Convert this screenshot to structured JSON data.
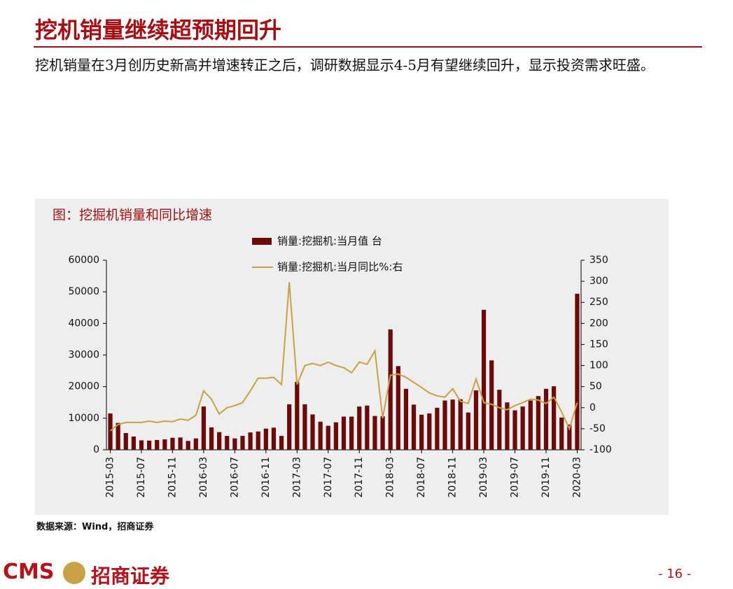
{
  "header": {
    "title": "挖机销量继续超预期回升",
    "body": "挖机销量在3月创历史新高并增速转正之后，调研数据显示4-5月有望继续回升，显示投资需求旺盛。"
  },
  "chart_data": {
    "type": "bar-line",
    "title": "图：挖掘机销量和同比增速",
    "categories": [
      "2015-03",
      null,
      null,
      null,
      "2015-07",
      null,
      null,
      null,
      "2015-11",
      null,
      null,
      null,
      "2016-03",
      null,
      null,
      null,
      "2016-07",
      null,
      null,
      null,
      "2016-11",
      null,
      null,
      null,
      "2017-03",
      null,
      null,
      null,
      "2017-07",
      null,
      null,
      null,
      "2017-11",
      null,
      null,
      null,
      "2018-03",
      null,
      null,
      null,
      "2018-07",
      null,
      null,
      null,
      "2018-11",
      null,
      null,
      null,
      "2019-03",
      null,
      null,
      null,
      "2019-07",
      null,
      null,
      null,
      "2019-11",
      null,
      null,
      null,
      "2020-03"
    ],
    "series": [
      {
        "name": "销量:挖掘机:当月值 台",
        "type": "bar",
        "color": "#6b0a0a",
        "values": [
          11500,
          8500,
          5300,
          4200,
          3000,
          2900,
          3100,
          3300,
          3800,
          3900,
          2800,
          3600,
          13700,
          7100,
          5600,
          4400,
          3600,
          4400,
          5500,
          5800,
          6700,
          7000,
          4400,
          14400,
          21500,
          14400,
          11200,
          8900,
          7600,
          8700,
          10500,
          10500,
          13700,
          14000,
          10700,
          10600,
          38100,
          26500,
          19300,
          14300,
          11100,
          11500,
          13300,
          15600,
          15900,
          16000,
          11800,
          18800,
          44300,
          28300,
          19000,
          15000,
          12500,
          13700,
          15600,
          17000,
          19300,
          20100,
          10200,
          8000,
          49400
        ]
      },
      {
        "name": "销量:挖掘机:当月同比%:右",
        "type": "line",
        "axis": "y2",
        "color": "#c9a043",
        "values": [
          -55,
          -40,
          -35,
          -35,
          -35,
          -32,
          -35,
          -32,
          -33,
          -27,
          -30,
          -18,
          40,
          20,
          -15,
          0,
          5,
          12,
          40,
          70,
          70,
          72,
          55,
          298,
          55,
          100,
          105,
          100,
          108,
          100,
          95,
          83,
          108,
          103,
          135,
          -25,
          77,
          80,
          72,
          60,
          48,
          35,
          28,
          25,
          45,
          15,
          10,
          68,
          12,
          8,
          0,
          -5,
          5,
          12,
          20,
          18,
          10,
          25,
          -10,
          -50,
          12
        ]
      }
    ],
    "ylim": [
      0,
      60000
    ],
    "yticks": [
      0,
      10000,
      20000,
      30000,
      40000,
      50000,
      60000
    ],
    "y2lim": [
      -100,
      350
    ],
    "y2ticks": [
      -100,
      -50,
      0,
      50,
      100,
      150,
      200,
      250,
      300,
      350
    ]
  },
  "footer": {
    "source": "数据来源：Wind，招商证券",
    "logo_en": "CMS",
    "logo_cn": "招商证券",
    "page": "- 16 -"
  }
}
